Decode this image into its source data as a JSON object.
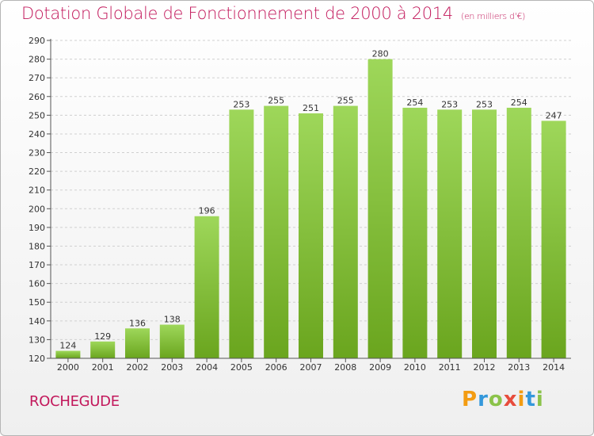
{
  "header": {
    "title": "Dotation Globale de Fonctionnement de 2000 à 2014",
    "subtitle": "(en milliers d'€)"
  },
  "commune": "ROCHEGUDE",
  "logo": {
    "text": "Proxiti",
    "letters": [
      "P",
      "r",
      "o",
      "x",
      "i",
      "t",
      "i"
    ],
    "colors": [
      "#f39c12",
      "#3498db",
      "#8bc34a",
      "#e74c3c",
      "#f39c12",
      "#3498db",
      "#8bc34a"
    ]
  },
  "colors": {
    "bar_light": "#9ed75a",
    "bar_dark": "#6aa51e",
    "title": "#c2185b",
    "grid": "#d0d0d0"
  },
  "chart_data": {
    "type": "bar",
    "categories": [
      "2000",
      "2001",
      "2002",
      "2003",
      "2004",
      "2005",
      "2006",
      "2007",
      "2008",
      "2009",
      "2010",
      "2011",
      "2012",
      "2013",
      "2014"
    ],
    "values": [
      124,
      129,
      136,
      138,
      196,
      253,
      255,
      251,
      255,
      280,
      254,
      253,
      253,
      254,
      247
    ],
    "value_labels": [
      "124",
      "129",
      "136",
      "138",
      "196",
      "253",
      "255",
      "251",
      "255",
      "280",
      "254",
      "253",
      "253",
      "254",
      "247"
    ],
    "title": "Dotation Globale de Fonctionnement de 2000 à 2014",
    "subtitle": "(en milliers d'€)",
    "xlabel": "",
    "ylabel": "",
    "ylim": [
      120,
      290
    ],
    "yticks": [
      "120",
      "130",
      "140",
      "150",
      "160",
      "170",
      "180",
      "190",
      "200",
      "210",
      "220",
      "230",
      "240",
      "250",
      "260",
      "270",
      "280",
      "290"
    ],
    "grid": true,
    "legend": "none"
  }
}
